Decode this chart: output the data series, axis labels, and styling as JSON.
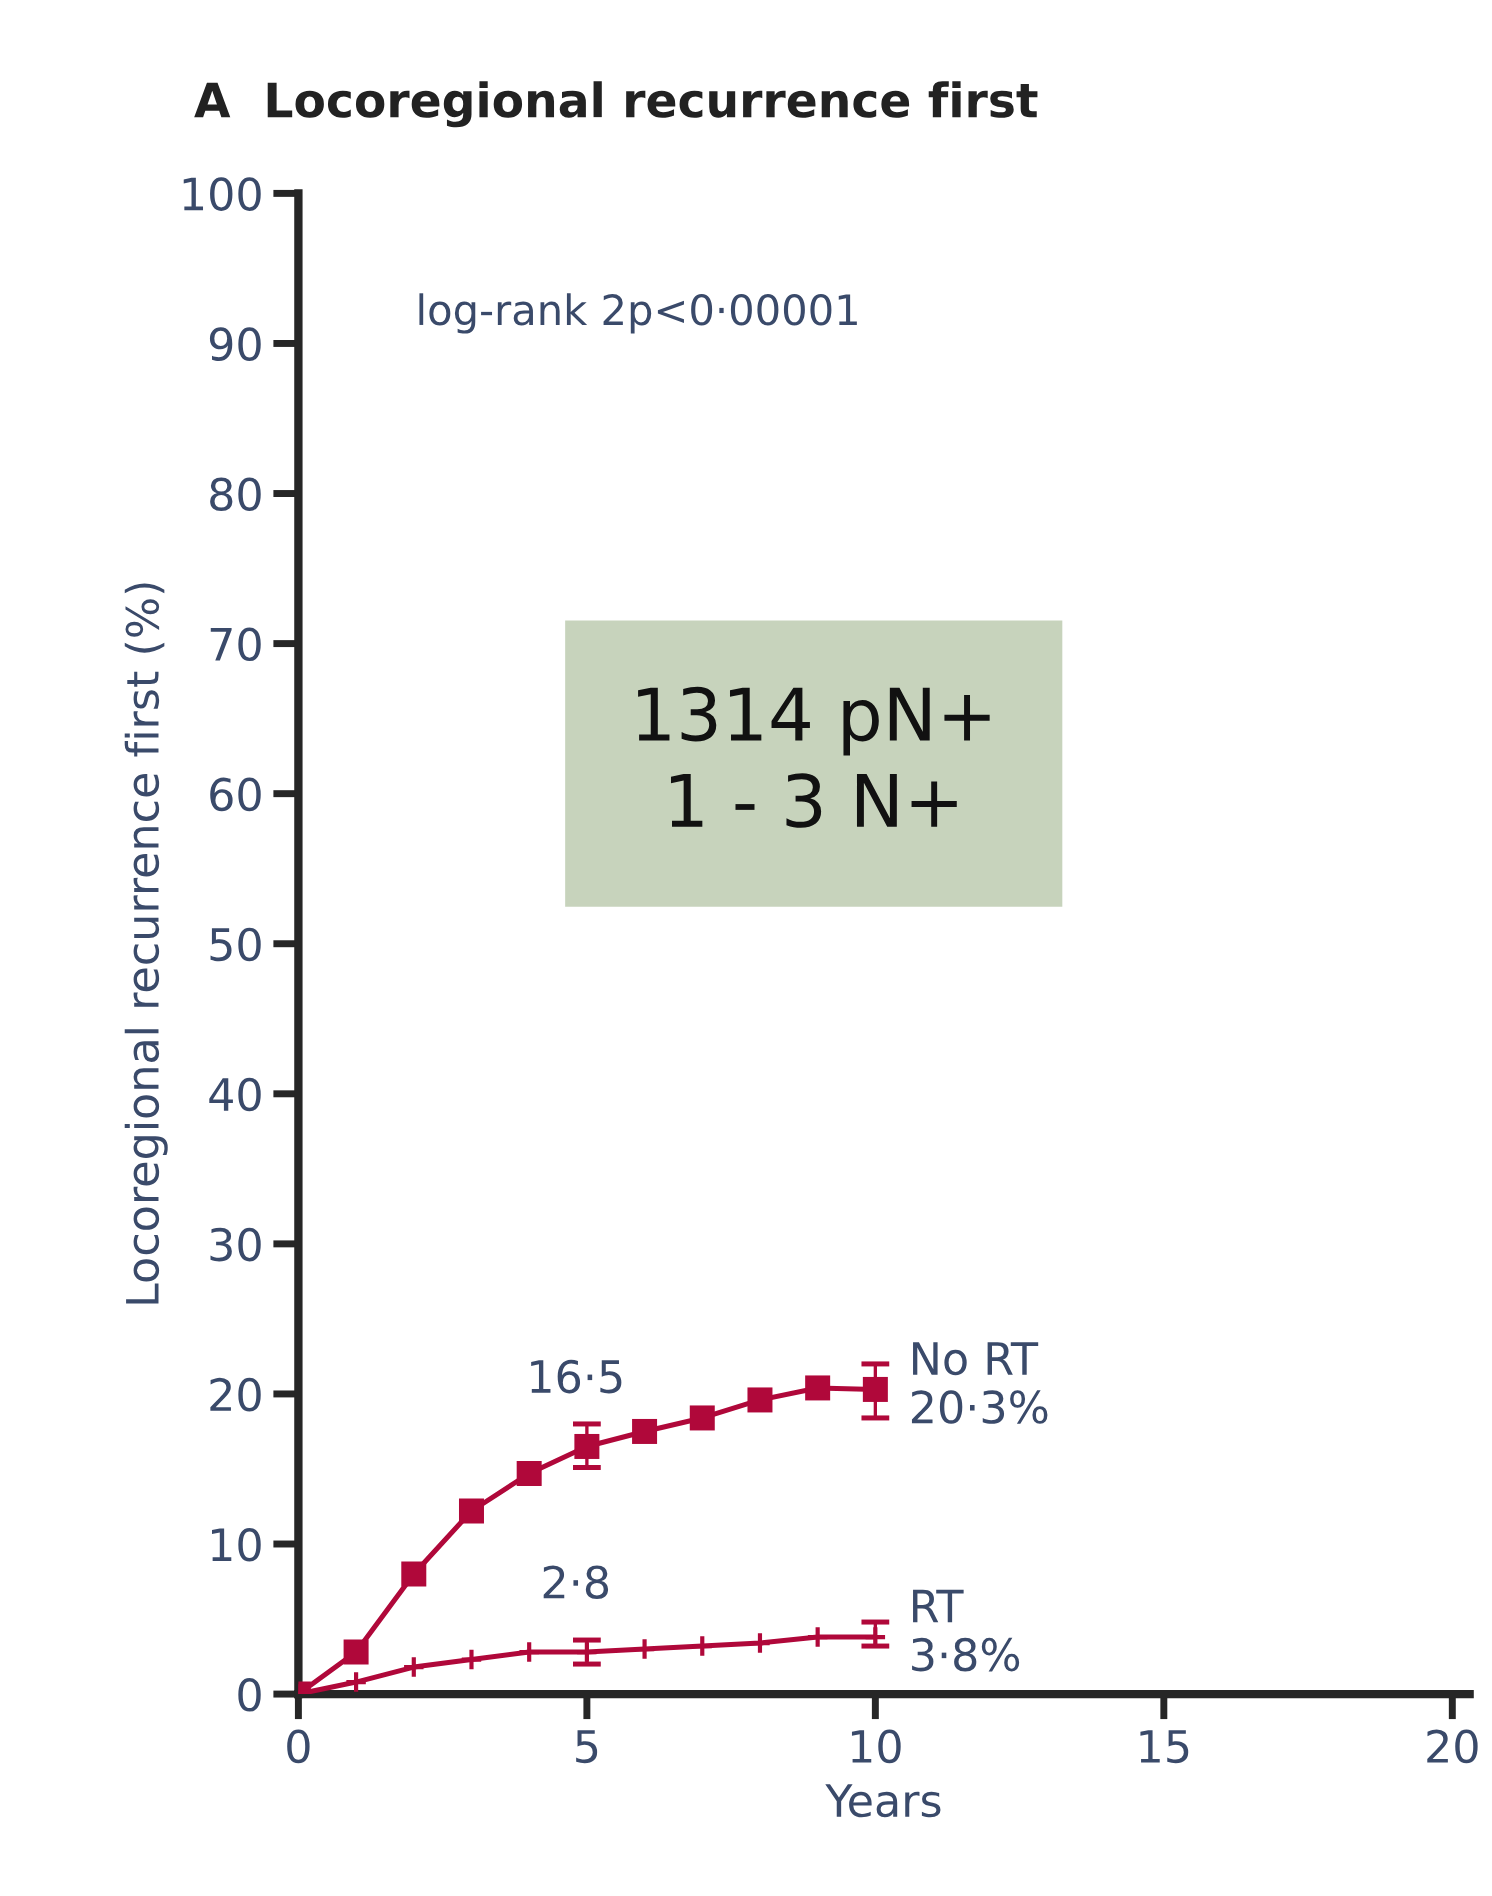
{
  "chart_data": {
    "type": "line",
    "title": "A  Locoregional recurrence first",
    "xlabel": "Years",
    "ylabel": "Locoregional recurrence first (%)",
    "xlim": [
      0,
      20.3
    ],
    "xticks": [
      0,
      5,
      10,
      15,
      20
    ],
    "ylim": [
      0,
      100
    ],
    "yticks": [
      0,
      10,
      20,
      30,
      40,
      50,
      60,
      70,
      80,
      90,
      100
    ],
    "grid": false,
    "line_style": "solid",
    "series": [
      {
        "name": "No RT",
        "color": "#b0083a",
        "marker": "square",
        "x": [
          0,
          1,
          2,
          3,
          4,
          5,
          6,
          7,
          8,
          9,
          10
        ],
        "values": [
          0,
          2.8,
          8.0,
          12.2,
          14.7,
          16.5,
          17.5,
          18.4,
          19.6,
          20.4,
          20.3
        ],
        "errors": [
          null,
          null,
          null,
          null,
          null,
          [
            15.1,
            18.0
          ],
          null,
          null,
          null,
          null,
          [
            18.4,
            22.0
          ]
        ],
        "value_labels": [
          null,
          null,
          null,
          null,
          null,
          "16·5",
          null,
          null,
          null,
          null,
          "20·3%"
        ]
      },
      {
        "name": "RT",
        "color": "#b0083a",
        "marker": "cross",
        "x": [
          0,
          1,
          2,
          3,
          4,
          5,
          6,
          7,
          8,
          9,
          10
        ],
        "values": [
          0,
          0.8,
          1.8,
          2.3,
          2.8,
          2.8,
          3.0,
          3.2,
          3.4,
          3.8,
          3.8
        ],
        "errors": [
          null,
          null,
          null,
          null,
          null,
          [
            2.0,
            3.6
          ],
          null,
          null,
          null,
          null,
          [
            3.2,
            4.8
          ]
        ]
      }
    ],
    "annotations": [
      "log-rank 2p<0·00001",
      "1314 pN+\n1 - 3 N+",
      {
        "text": "2·8",
        "x": 5,
        "y": 2.8
      },
      {
        "text": "3·8%",
        "x": 10,
        "y": 3.8
      }
    ]
  }
}
